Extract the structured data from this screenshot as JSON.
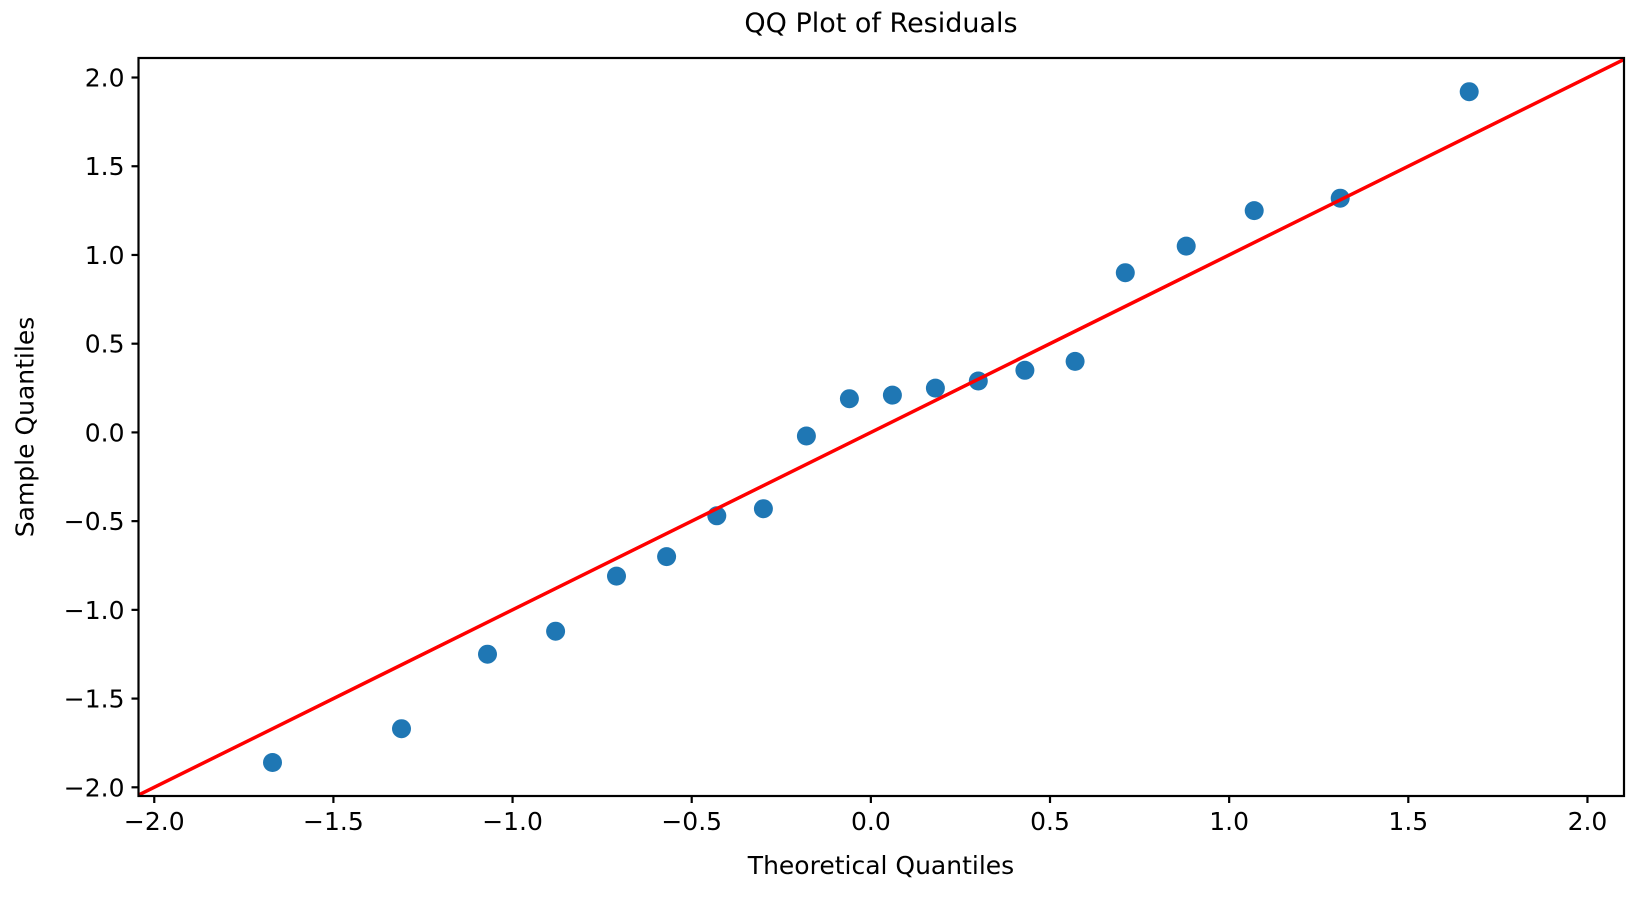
{
  "figure": {
    "background": "#ffffff"
  },
  "chart_data": {
    "type": "scatter",
    "title": "QQ Plot of Residuals",
    "xlabel": "Theoretical Quantiles",
    "ylabel": "Sample Quantiles",
    "xlim": [
      -2.044,
      2.102
    ],
    "ylim": [
      -2.049,
      2.11
    ],
    "grid": false,
    "legend": "none",
    "axis_color": "#000000",
    "xticks": [
      -2.0,
      -1.5,
      -1.0,
      -0.5,
      0.0,
      0.5,
      1.0,
      1.5,
      2.0
    ],
    "xtick_labels": [
      "−2.0",
      "−1.5",
      "−1.0",
      "−0.5",
      "0.0",
      "0.5",
      "1.0",
      "1.5",
      "2.0"
    ],
    "yticks": [
      -2.0,
      -1.5,
      -1.0,
      -0.5,
      0.0,
      0.5,
      1.0,
      1.5,
      2.0
    ],
    "ytick_labels": [
      "−2.0",
      "−1.5",
      "−1.0",
      "−0.5",
      "0.0",
      "0.5",
      "1.0",
      "1.5",
      "2.0"
    ],
    "series": [
      {
        "name": "residuals-scatter",
        "kind": "scatter",
        "color": "#1f77b4",
        "marker": "circle",
        "points": [
          [
            -1.67,
            -1.86
          ],
          [
            -1.31,
            -1.67
          ],
          [
            -1.07,
            -1.25
          ],
          [
            -0.88,
            -1.12
          ],
          [
            -0.71,
            -0.81
          ],
          [
            -0.57,
            -0.7
          ],
          [
            -0.43,
            -0.47
          ],
          [
            -0.3,
            -0.43
          ],
          [
            -0.18,
            -0.02
          ],
          [
            -0.06,
            0.19
          ],
          [
            0.06,
            0.21
          ],
          [
            0.18,
            0.25
          ],
          [
            0.3,
            0.29
          ],
          [
            0.43,
            0.35
          ],
          [
            0.57,
            0.4
          ],
          [
            0.71,
            0.9
          ],
          [
            0.88,
            1.05
          ],
          [
            1.07,
            1.25
          ],
          [
            1.31,
            1.32
          ],
          [
            1.67,
            1.92
          ]
        ]
      },
      {
        "name": "identity-reference-line",
        "kind": "line",
        "color": "#ff0000",
        "points": [
          [
            -2.044,
            -2.044
          ],
          [
            2.102,
            2.102
          ]
        ]
      }
    ]
  }
}
